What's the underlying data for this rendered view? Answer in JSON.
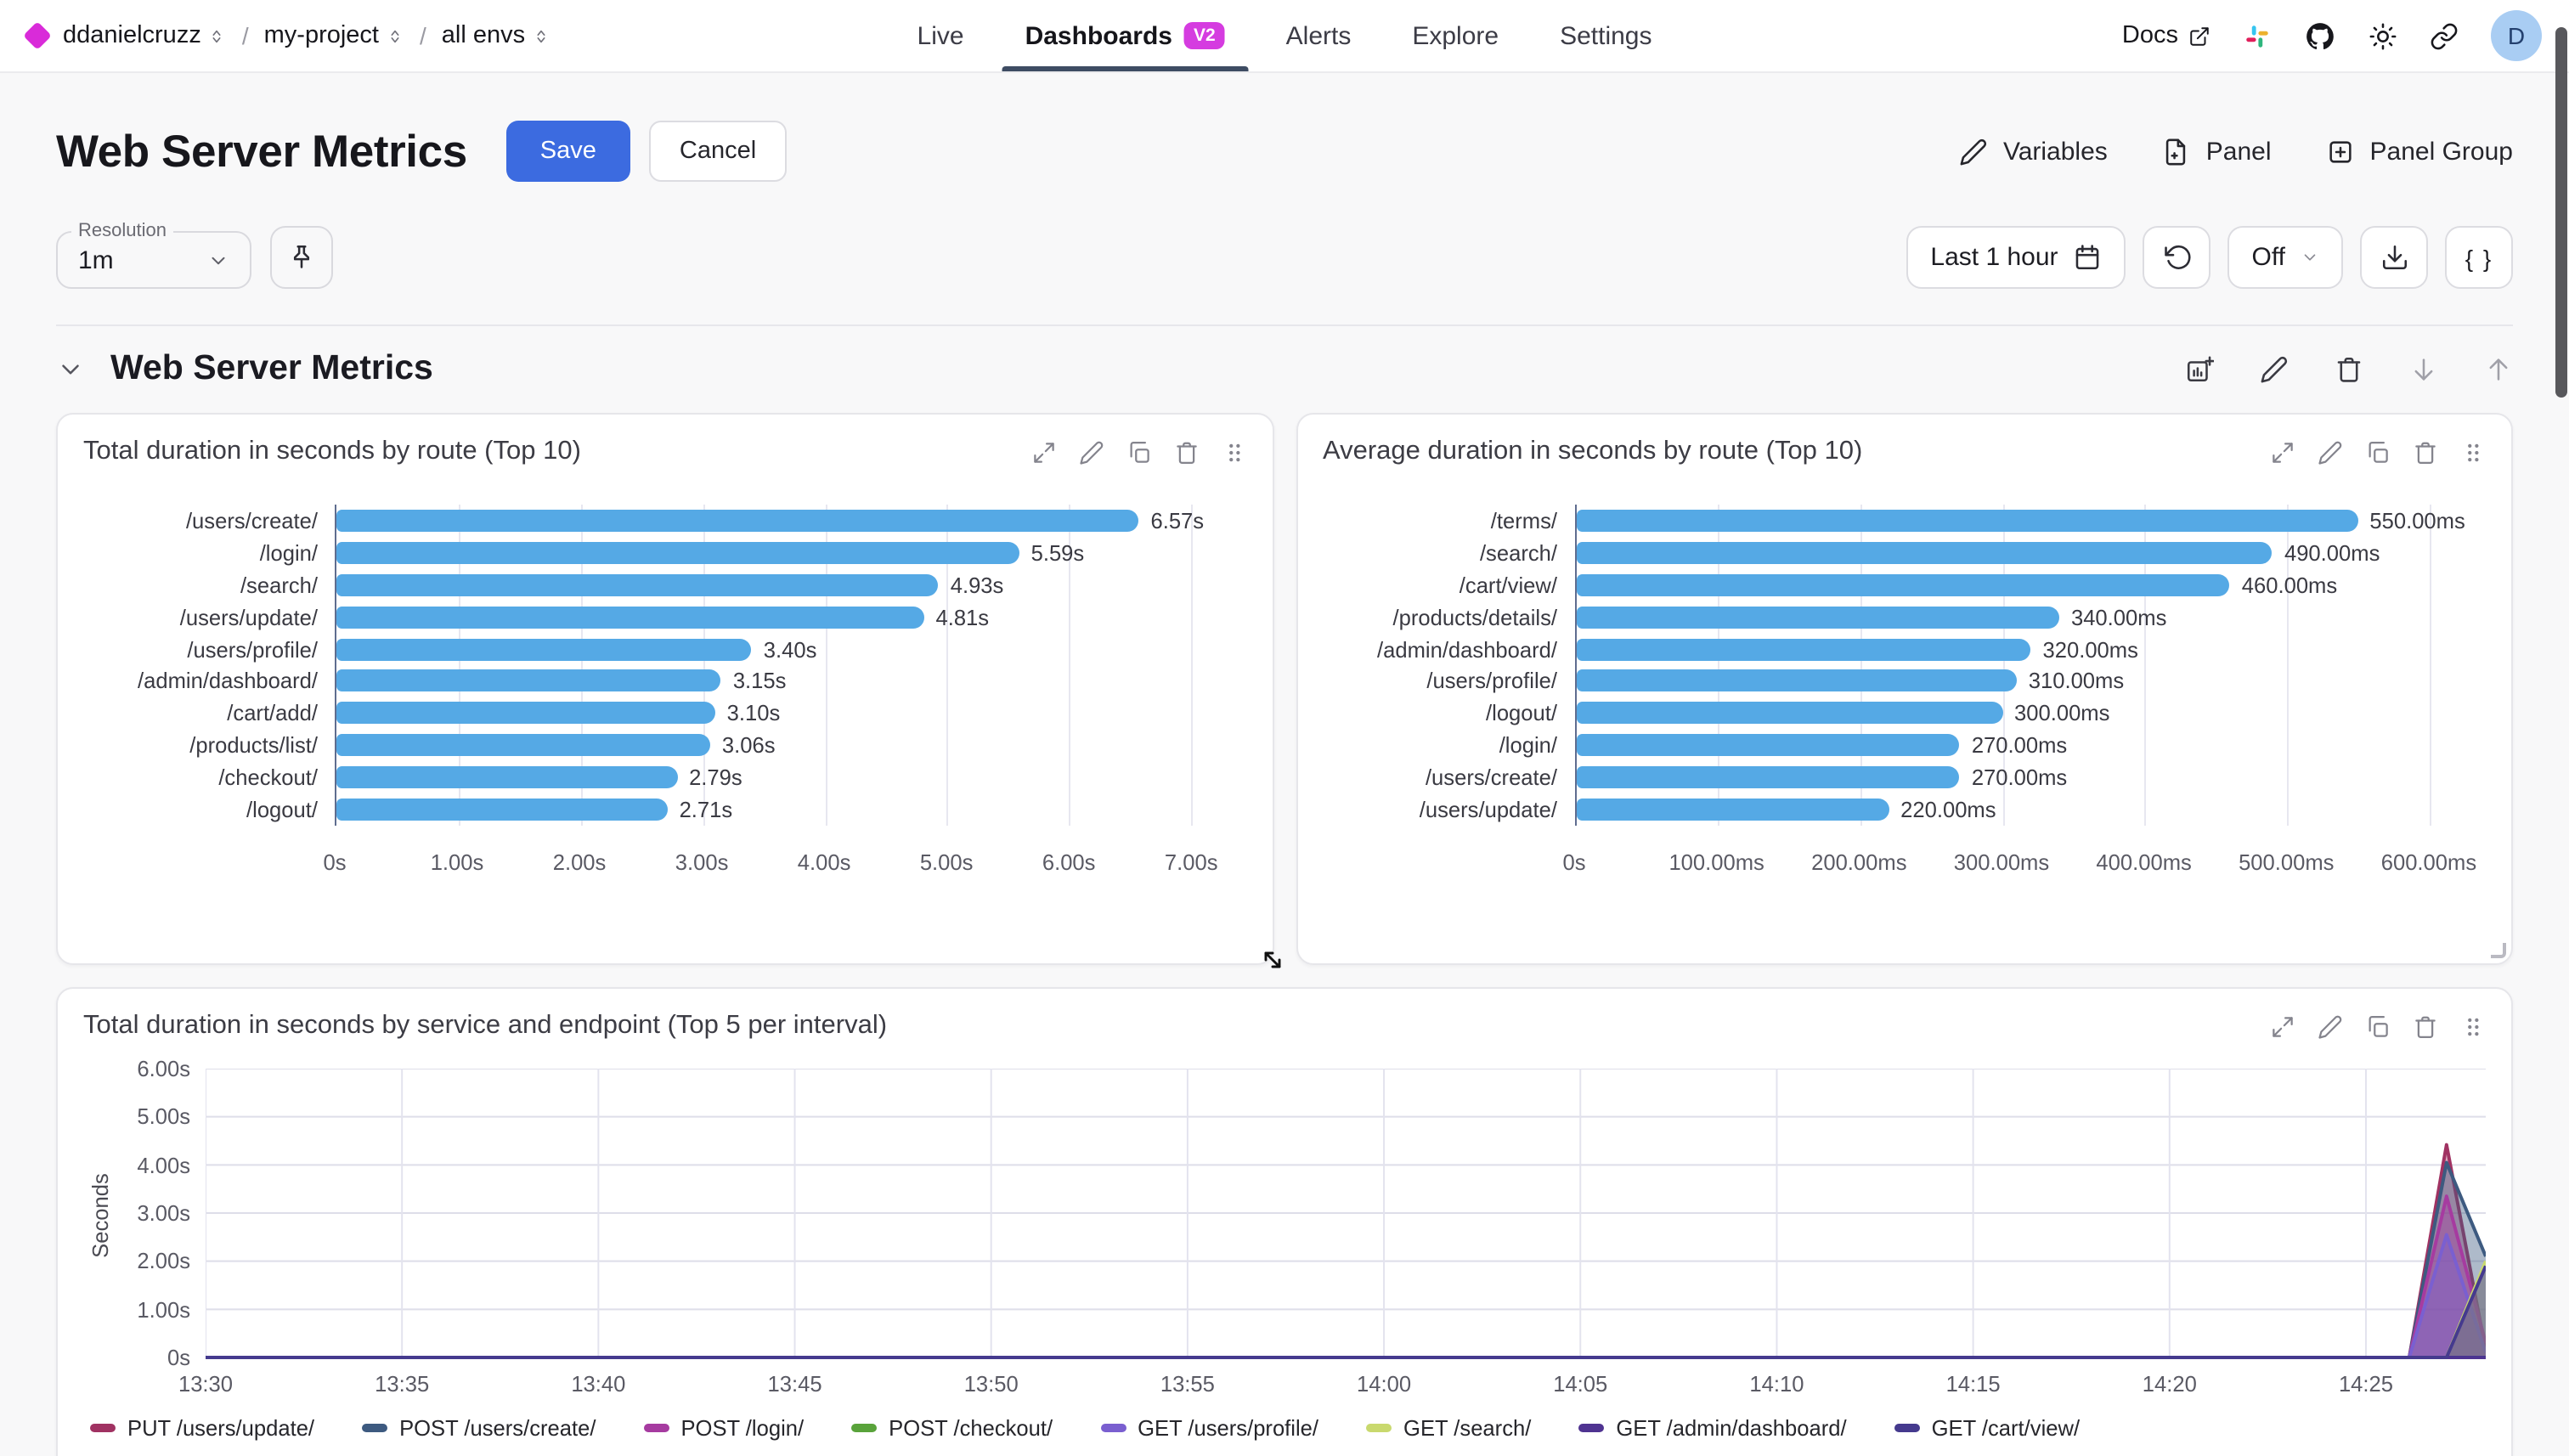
{
  "nav": {
    "breadcrumb": [
      {
        "label": "ddanielcruzz"
      },
      {
        "label": "my-project"
      },
      {
        "label": "all envs"
      }
    ],
    "tabs": [
      {
        "label": "Live",
        "active": false
      },
      {
        "label": "Dashboards",
        "badge": "V2",
        "active": true
      },
      {
        "label": "Alerts",
        "active": false
      },
      {
        "label": "Explore",
        "active": false
      },
      {
        "label": "Settings",
        "active": false
      }
    ],
    "docs_label": "Docs",
    "right_icons": [
      "slack-icon",
      "github-icon",
      "sun-icon",
      "link-icon"
    ],
    "avatar_initial": "D"
  },
  "toolbar": {
    "title": "Web Server Metrics",
    "save_label": "Save",
    "cancel_label": "Cancel",
    "variables_label": "Variables",
    "panel_label": "Panel",
    "panel_group_label": "Panel Group"
  },
  "controls": {
    "resolution_label": "Resolution",
    "resolution_value": "1m",
    "time_range_label": "Last 1 hour",
    "auto_refresh_value": "Off",
    "braces_label": "{ }"
  },
  "section": {
    "title": "Web Server Metrics"
  },
  "panel_icons": [
    "expand-icon",
    "pencil-icon",
    "copy-icon",
    "trash-icon",
    "grip-icon"
  ],
  "colors": {
    "bar": "#55a9e5",
    "accent_blue": "#3c6be0",
    "brand_magenta": "#d92bd9",
    "tab_underline": "#3e4c63"
  },
  "chart_data": [
    {
      "type": "bar",
      "orientation": "horizontal",
      "title": "Total duration in seconds by route (Top 10)",
      "categories": [
        "/users/create/",
        "/login/",
        "/search/",
        "/users/update/",
        "/users/profile/",
        "/admin/dashboard/",
        "/cart/add/",
        "/products/list/",
        "/checkout/",
        "/logout/"
      ],
      "values": [
        6.57,
        5.59,
        4.93,
        4.81,
        3.4,
        3.15,
        3.1,
        3.06,
        2.79,
        2.71
      ],
      "value_labels": [
        "6.57s",
        "5.59s",
        "4.93s",
        "4.81s",
        "3.40s",
        "3.15s",
        "3.10s",
        "3.06s",
        "2.79s",
        "2.71s"
      ],
      "xticks": [
        "0s",
        "1.00s",
        "2.00s",
        "3.00s",
        "4.00s",
        "5.00s",
        "6.00s",
        "7.00s"
      ],
      "tick_values": [
        0,
        1,
        2,
        3,
        4,
        5,
        6,
        7
      ],
      "xlim": [
        0,
        7.45
      ],
      "grid": true
    },
    {
      "type": "bar",
      "orientation": "horizontal",
      "title": "Average duration in seconds by route (Top 10)",
      "categories": [
        "/terms/",
        "/search/",
        "/cart/view/",
        "/products/details/",
        "/admin/dashboard/",
        "/users/profile/",
        "/logout/",
        "/login/",
        "/users/create/",
        "/users/update/"
      ],
      "values": [
        550,
        490,
        460,
        340,
        320,
        310,
        300,
        270,
        270,
        220
      ],
      "value_labels": [
        "550.00ms",
        "490.00ms",
        "460.00ms",
        "340.00ms",
        "320.00ms",
        "310.00ms",
        "300.00ms",
        "270.00ms",
        "270.00ms",
        "220.00ms"
      ],
      "xticks": [
        "0s",
        "100.00ms",
        "200.00ms",
        "300.00ms",
        "400.00ms",
        "500.00ms",
        "600.00ms"
      ],
      "tick_values": [
        0,
        100,
        200,
        300,
        400,
        500,
        600
      ],
      "xlim": [
        0,
        640
      ],
      "grid": true
    },
    {
      "type": "area",
      "title": "Total duration in seconds by service and endpoint (Top 5 per interval)",
      "ylabel": "Seconds",
      "yticks": [
        "0s",
        "1.00s",
        "2.00s",
        "3.00s",
        "4.00s",
        "5.00s",
        "6.00s"
      ],
      "ytick_values": [
        0,
        1,
        2,
        3,
        4,
        5,
        6
      ],
      "ylim": [
        0,
        6
      ],
      "xticks": [
        "13:30",
        "13:35",
        "13:40",
        "13:45",
        "13:50",
        "13:55",
        "14:00",
        "14:05",
        "14:10",
        "14:15",
        "14:20",
        "14:25"
      ],
      "x_minutes_range": [
        0,
        58.05
      ],
      "xtick_interval_min": 5,
      "grid": true,
      "legend_position": "bottom",
      "series": [
        {
          "name": "PUT /users/update/",
          "color": "#a03262",
          "points": [
            [
              0,
              0
            ],
            [
              56.1,
              0
            ],
            [
              57.05,
              4.42
            ],
            [
              58.05,
              0.15
            ]
          ]
        },
        {
          "name": "POST /users/create/",
          "color": "#3d5a80",
          "points": [
            [
              0,
              0
            ],
            [
              56.1,
              0
            ],
            [
              57.05,
              4.05
            ],
            [
              58.05,
              2.1
            ]
          ]
        },
        {
          "name": "POST /login/",
          "color": "#a63ba0",
          "points": [
            [
              0,
              0
            ],
            [
              56.1,
              0
            ],
            [
              57.05,
              3.35
            ],
            [
              58.05,
              0.3
            ]
          ]
        },
        {
          "name": "POST /checkout/",
          "color": "#59a33b",
          "points": [
            [
              0,
              0
            ],
            [
              58.05,
              0
            ]
          ]
        },
        {
          "name": "GET /users/profile/",
          "color": "#7a5fd0",
          "points": [
            [
              0,
              0
            ],
            [
              56.1,
              0
            ],
            [
              57.05,
              2.55
            ],
            [
              58.05,
              0.1
            ]
          ]
        },
        {
          "name": "GET /search/",
          "color": "#c9d96e",
          "points": [
            [
              0,
              0
            ],
            [
              57.05,
              0
            ],
            [
              58.05,
              2.0
            ]
          ]
        },
        {
          "name": "GET /admin/dashboard/",
          "color": "#4f3391",
          "points": [
            [
              0,
              0
            ],
            [
              58.05,
              0
            ]
          ]
        },
        {
          "name": "GET /cart/view/",
          "color": "#453a8e",
          "points": [
            [
              0,
              0
            ],
            [
              57.05,
              0
            ],
            [
              58.05,
              1.9
            ]
          ]
        }
      ],
      "legend": [
        "PUT /users/update/",
        "POST /users/create/",
        "POST /login/",
        "POST /checkout/",
        "GET /users/profile/",
        "GET /search/",
        "GET /admin/dashboard/",
        "GET /cart/view/"
      ]
    }
  ]
}
